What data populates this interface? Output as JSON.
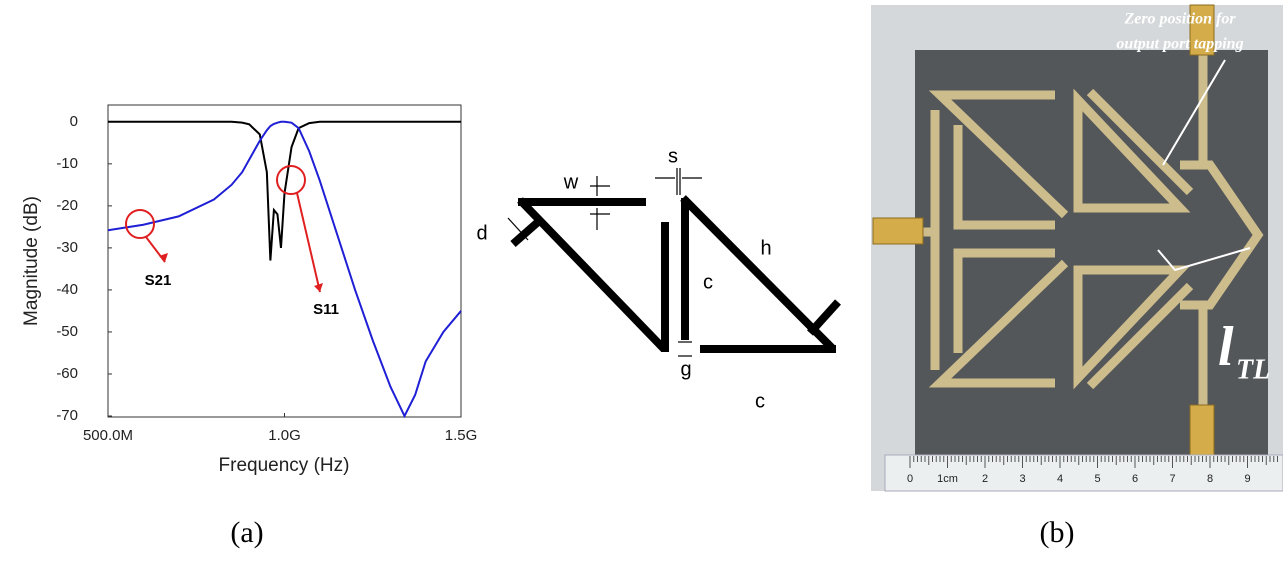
{
  "chart_data": {
    "type": "line",
    "x_label": "Frequency (Hz)",
    "y_label": "Magnitude (dB)",
    "x": [
      500000000,
      600000000,
      700000000,
      800000000,
      850000000,
      880000000,
      900000000,
      930000000,
      950000000,
      960000000,
      970000000,
      980000000,
      990000000,
      1000000000,
      1020000000,
      1040000000,
      1070000000,
      1100000000,
      1150000000,
      1200000000,
      1250000000,
      1300000000,
      1340000000,
      1370000000,
      1400000000,
      1450000000,
      1500000000
    ],
    "series": [
      {
        "name": "S11",
        "color": "#000000",
        "values": [
          0,
          0,
          0,
          0,
          0,
          -0.2,
          -0.6,
          -3,
          -12,
          -33,
          -21,
          -22,
          -30,
          -17,
          -6,
          -1.5,
          -0.3,
          0,
          0,
          0,
          0,
          0,
          0,
          0,
          0,
          0,
          0
        ]
      },
      {
        "name": "S21",
        "color": "#1f1fd6",
        "values": [
          -25.8,
          -24.5,
          -22.5,
          -18.5,
          -15,
          -12,
          -9,
          -4.5,
          -2,
          -1,
          -0.5,
          -0.2,
          0,
          0,
          -0.2,
          -1.5,
          -7,
          -14,
          -27,
          -40,
          -52,
          -63,
          -70,
          -65,
          -57,
          -50,
          -45
        ]
      }
    ],
    "xlim": [
      500000000,
      1500000000
    ],
    "xticks": [
      {
        "value": 500000000,
        "label": "500.0M"
      },
      {
        "value": 1000000000,
        "label": "1.0G"
      },
      {
        "value": 1500000000,
        "label": "1.5G"
      }
    ],
    "ylim": [
      -70,
      4
    ],
    "yticks": [
      0,
      -10,
      -20,
      -30,
      -40,
      -50,
      -60,
      -70
    ],
    "grid": false
  },
  "diagram": {
    "labels": [
      "w",
      "s",
      "d",
      "h",
      "c",
      "c",
      "g"
    ]
  },
  "photo": {
    "annotation": [
      "Zero position for",
      "output port tapping"
    ],
    "length_symbol": "l",
    "length_subscript": "TL",
    "ruler_labels": [
      "0",
      "1cm",
      "2",
      "3",
      "4",
      "5",
      "6",
      "7",
      "8",
      "9"
    ]
  },
  "captions": [
    "(a)",
    "(b)"
  ]
}
